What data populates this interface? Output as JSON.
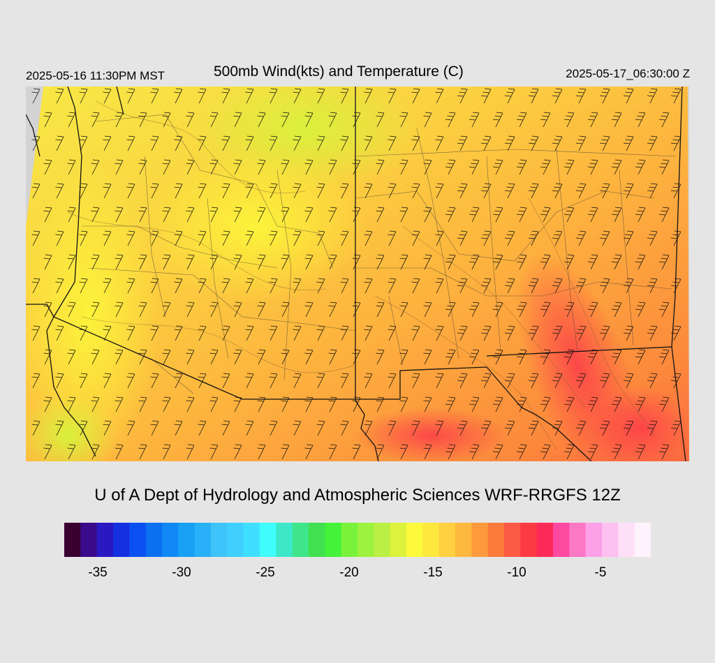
{
  "header": {
    "local_time": "2025-05-16 11:30PM MST",
    "title": "500mb Wind(kts) and Temperature (C)",
    "utc_time": "2025-05-17_06:30:00 Z"
  },
  "footer": {
    "credit": "U of A Dept of Hydrology and Atmospheric Sciences WRF-RRGFS 12Z"
  },
  "legend": {
    "tick_labels": [
      "-35",
      "-30",
      "-25",
      "-20",
      "-15",
      "-10",
      "-5"
    ],
    "tick_values": [
      -35,
      -30,
      -25,
      -20,
      -15,
      -10,
      -5
    ],
    "range": [
      -37,
      -2
    ],
    "colors": [
      "#3a0030",
      "#3a0a8a",
      "#2a18c2",
      "#1530e0",
      "#0a50f0",
      "#0a70f0",
      "#1088f5",
      "#18a0f5",
      "#28b0f8",
      "#3ec4fa",
      "#40d0ff",
      "#3fe0ff",
      "#3ffdfc",
      "#3ce8c8",
      "#3fe58a",
      "#40e050",
      "#44f23a",
      "#78f23a",
      "#9cf23e",
      "#bbef44",
      "#dcf23c",
      "#fcf83a",
      "#fde83e",
      "#ffd040",
      "#fdb83e",
      "#fd9a3c",
      "#fc7a3a",
      "#fc5a44",
      "#fc3a44",
      "#fc2a58",
      "#fd4aa0",
      "#fd78c4",
      "#fda0e8",
      "#fdc0f0",
      "#fde0f8",
      "#fef2fc"
    ]
  }
}
